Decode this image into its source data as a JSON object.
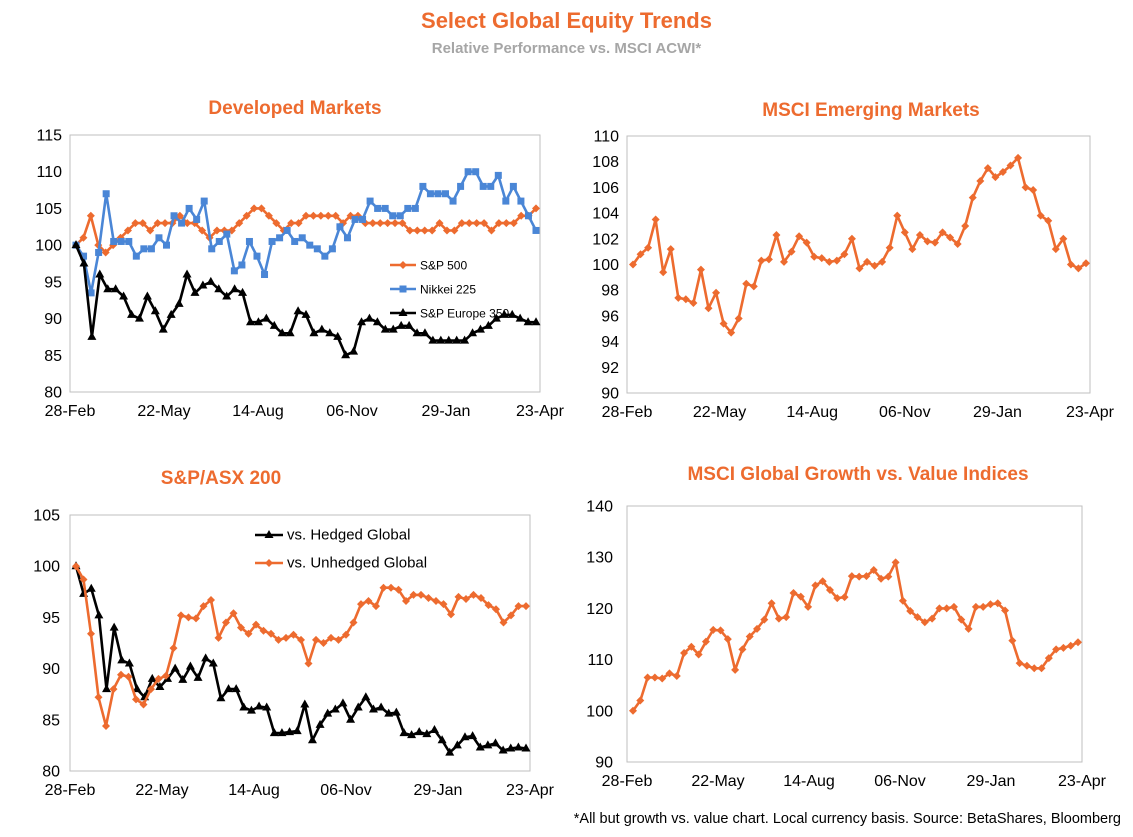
{
  "header": {
    "title": "Select Global Equity Trends",
    "subtitle": "Relative Performance vs. MSCI ACWI*"
  },
  "footnote": "*All but growth vs. value chart. Local currency basis.  Source: BetaShares, Bloomberg",
  "colors": {
    "accent": "#ED6B2F",
    "blue": "#4A86D6",
    "black": "#000000",
    "axis": "#BFBFBF"
  },
  "chart_data": [
    {
      "id": "developed",
      "type": "line",
      "title": "Developed Markets",
      "x_ticks": [
        "28-Feb",
        "22-May",
        "14-Aug",
        "06-Nov",
        "29-Jan",
        "23-Apr"
      ],
      "ylim": [
        80,
        115
      ],
      "y_ticks": [
        80,
        85,
        90,
        95,
        100,
        105,
        110,
        115
      ],
      "legend_position": "inside-right",
      "series": [
        {
          "name": "S&P 500",
          "color": "#ED6B2F",
          "marker": "diamond",
          "values": [
            100,
            101,
            104,
            100,
            99,
            100,
            101,
            102,
            103,
            103,
            102,
            103,
            103,
            103,
            104,
            103,
            103,
            102,
            101,
            102,
            102,
            102,
            103,
            104,
            105,
            105,
            104,
            103,
            102,
            103,
            103,
            104,
            104,
            104,
            104,
            104,
            103,
            104,
            104,
            103,
            103,
            103,
            103,
            103,
            103,
            102,
            102,
            102,
            102,
            103,
            102,
            102,
            103,
            103,
            103,
            103,
            102,
            103,
            103,
            103,
            104,
            104,
            105
          ]
        },
        {
          "name": "Nikkei 225",
          "color": "#4A86D6",
          "marker": "square",
          "values": [
            100,
            98.5,
            93.5,
            99,
            107,
            100.5,
            100.5,
            100.5,
            98.5,
            99.5,
            99.5,
            101,
            100,
            104,
            103,
            105,
            103.5,
            106,
            99.5,
            100.5,
            101.5,
            96.5,
            97.3,
            100.5,
            98.5,
            96,
            100.5,
            101,
            102,
            100.5,
            101,
            100,
            99.5,
            98.5,
            99.5,
            102.5,
            101,
            103.5,
            103.5,
            106,
            105,
            105,
            104,
            104,
            105,
            105,
            108,
            107,
            107,
            107,
            106,
            108,
            110,
            110,
            108,
            108,
            109.5,
            106,
            108,
            106,
            104,
            102
          ]
        },
        {
          "name": "S&P Europe 350",
          "color": "#000000",
          "marker": "triangle",
          "values": [
            100,
            97.5,
            87.5,
            96,
            94,
            94,
            93,
            90.5,
            90,
            93,
            91,
            88.5,
            90.5,
            92,
            96,
            93.5,
            94.5,
            95,
            94,
            93,
            94,
            93.5,
            89.5,
            89.5,
            90,
            89,
            88,
            88,
            91,
            90.5,
            88,
            88.5,
            88,
            87.5,
            85,
            85.5,
            89.5,
            90,
            89.5,
            88.5,
            88.5,
            89,
            89,
            88,
            88,
            87,
            87,
            87,
            87,
            87,
            88,
            88.5,
            89,
            90,
            90.5,
            90.5,
            90,
            89.5,
            89.5
          ]
        }
      ]
    },
    {
      "id": "emerging",
      "type": "line",
      "title": "MSCI Emerging Markets",
      "x_ticks": [
        "28-Feb",
        "22-May",
        "14-Aug",
        "06-Nov",
        "29-Jan",
        "23-Apr"
      ],
      "ylim": [
        90,
        110
      ],
      "y_ticks": [
        90,
        92,
        94,
        96,
        98,
        100,
        102,
        104,
        106,
        108,
        110
      ],
      "series": [
        {
          "name": "",
          "color": "#ED6B2F",
          "marker": "diamond",
          "values": [
            100,
            100.8,
            101.3,
            103.5,
            99.4,
            101.2,
            97.4,
            97.3,
            97,
            99.6,
            96.6,
            97.8,
            95.4,
            94.7,
            95.8,
            98.5,
            98.3,
            100.3,
            100.4,
            102.3,
            100.2,
            101,
            102.2,
            101.7,
            100.6,
            100.5,
            100.2,
            100.3,
            100.8,
            102,
            99.7,
            100.2,
            99.9,
            100.2,
            101.3,
            103.8,
            102.5,
            101.2,
            102.3,
            101.8,
            101.7,
            102.5,
            102.1,
            101.6,
            103,
            105.2,
            106.5,
            107.5,
            106.8,
            107.2,
            107.7,
            108.3,
            106,
            105.8,
            103.8,
            103.4,
            101.2,
            102,
            100,
            99.7,
            100.1
          ]
        }
      ]
    },
    {
      "id": "asx200",
      "type": "line",
      "title": "S&P/ASX 200",
      "x_ticks": [
        "28-Feb",
        "22-May",
        "14-Aug",
        "06-Nov",
        "29-Jan",
        "23-Apr"
      ],
      "ylim": [
        80,
        105
      ],
      "y_ticks": [
        80,
        85,
        90,
        95,
        100,
        105
      ],
      "legend_position": "top-center",
      "series": [
        {
          "name": "vs. Hedged Global",
          "color": "#000000",
          "marker": "triangle",
          "values": [
            100,
            97.3,
            97.8,
            95.2,
            88,
            94,
            90.8,
            90.5,
            88,
            87.2,
            89,
            88.2,
            89,
            90,
            88.9,
            90.2,
            89.1,
            91,
            90.5,
            87.1,
            88,
            88,
            86.2,
            85.9,
            86.3,
            86.2,
            83.7,
            83.7,
            83.8,
            83.9,
            86.5,
            83,
            84.5,
            85.6,
            86,
            86.6,
            85,
            86.2,
            87.2,
            86,
            86.2,
            85.6,
            85.7,
            83.7,
            83.5,
            83.8,
            83.6,
            84,
            83,
            81.8,
            82.5,
            83.3,
            83.4,
            82.3,
            82.5,
            82.7,
            82,
            82.2,
            82.3,
            82.2
          ]
        },
        {
          "name": "vs. Unhedged Global",
          "color": "#ED6B2F",
          "marker": "diamond",
          "values": [
            100,
            98.7,
            93.4,
            87.2,
            84.4,
            88,
            89.4,
            89.2,
            87,
            86.5,
            88,
            89,
            89.3,
            92,
            95.2,
            95,
            94.9,
            96.1,
            96.7,
            93,
            94.5,
            95.4,
            94,
            93.4,
            94.3,
            93.7,
            93.4,
            92.8,
            93,
            93.3,
            92.8,
            90.5,
            92.8,
            92.5,
            93,
            92.8,
            93.3,
            94.5,
            96.3,
            96.6,
            96.1,
            97.9,
            97.9,
            97.7,
            96.6,
            97.2,
            97.2,
            96.9,
            96.6,
            96.3,
            95.3,
            97,
            96.8,
            97.2,
            96.9,
            96.2,
            95.8,
            94.5,
            95.2,
            96.1,
            96.1
          ]
        }
      ]
    },
    {
      "id": "growth_value",
      "type": "line",
      "title": "MSCI Global Growth vs. Value Indices",
      "x_ticks": [
        "28-Feb",
        "22-May",
        "14-Aug",
        "06-Nov",
        "29-Jan",
        "23-Apr"
      ],
      "ylim": [
        90,
        140
      ],
      "y_ticks": [
        90,
        100,
        110,
        120,
        130,
        140
      ],
      "series": [
        {
          "name": "",
          "color": "#ED6B2F",
          "marker": "diamond",
          "values": [
            100,
            102,
            106.5,
            106.5,
            106.3,
            107.3,
            106.8,
            111.3,
            112.5,
            111,
            113.5,
            115.8,
            115.7,
            114,
            108,
            112,
            114.5,
            116,
            117.8,
            121,
            118,
            118.3,
            123,
            122.3,
            120.3,
            124.5,
            125.3,
            123.6,
            122,
            122.2,
            126.3,
            126.2,
            126.3,
            127.5,
            125.8,
            126.2,
            129,
            121.5,
            119.5,
            118.3,
            117.3,
            118,
            120,
            120,
            120.3,
            117.8,
            116,
            120.3,
            120.3,
            120.8,
            121,
            119.6,
            113.7,
            109.3,
            108.8,
            108.3,
            108.3,
            110.3,
            112,
            112.3,
            112.7,
            113.4
          ]
        }
      ]
    }
  ]
}
